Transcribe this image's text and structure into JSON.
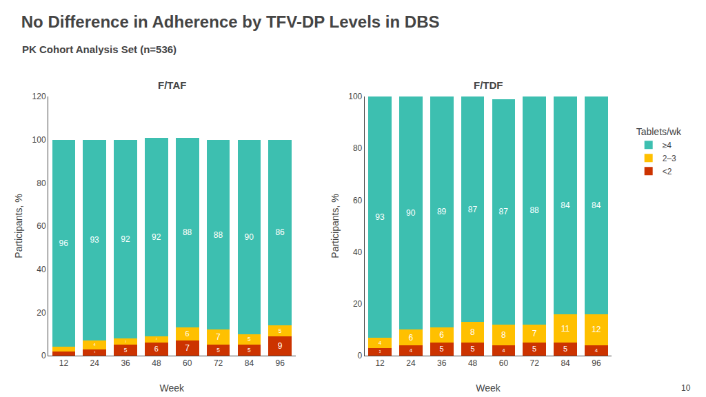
{
  "title": "No Difference in Adherence by TFV-DP Levels in DBS",
  "subtitle": "PK Cohort Analysis Set (n=536)",
  "legend_title": "Tablets/wk",
  "annotations": [
    {
      "text": "10"
    }
  ],
  "chart_data": [
    {
      "type": "bar",
      "title": "F/TAF",
      "categories": [
        "12",
        "24",
        "36",
        "48",
        "60",
        "72",
        "84",
        "96"
      ],
      "series": [
        {
          "name": "<2",
          "color": "#CC3300",
          "values": [
            2,
            3,
            5,
            6,
            7,
            5,
            5,
            9
          ]
        },
        {
          "name": "2–3",
          "color": "#FFC000",
          "values": [
            2,
            4,
            3,
            3,
            6,
            7,
            5,
            5
          ]
        },
        {
          "name": "≥4",
          "color": "#3DBFB0",
          "values": [
            96,
            93,
            92,
            92,
            88,
            88,
            90,
            86
          ]
        }
      ],
      "stacked": true,
      "data_labels": true,
      "xlabel": "Week",
      "ylabel": "Participants, %",
      "ylim": [
        0,
        120
      ],
      "yticks": [
        0,
        20,
        40,
        60,
        80,
        100,
        120
      ],
      "grid": false,
      "legend": "right"
    },
    {
      "type": "bar",
      "title": "F/TDF",
      "categories": [
        "12",
        "24",
        "36",
        "48",
        "60",
        "72",
        "84",
        "96"
      ],
      "series": [
        {
          "name": "<2",
          "color": "#CC3300",
          "values": [
            3,
            4,
            5,
            5,
            4,
            5,
            5,
            4
          ]
        },
        {
          "name": "2–3",
          "color": "#FFC000",
          "values": [
            4,
            6,
            6,
            8,
            8,
            7,
            11,
            12
          ]
        },
        {
          "name": "≥4",
          "color": "#3DBFB0",
          "values": [
            93,
            90,
            89,
            87,
            87,
            88,
            84,
            84
          ]
        }
      ],
      "stacked": true,
      "data_labels": true,
      "xlabel": "Week",
      "ylabel": "Participants, %",
      "ylim": [
        0,
        100
      ],
      "yticks": [
        0,
        20,
        40,
        60,
        80,
        100
      ],
      "grid": false
    }
  ]
}
